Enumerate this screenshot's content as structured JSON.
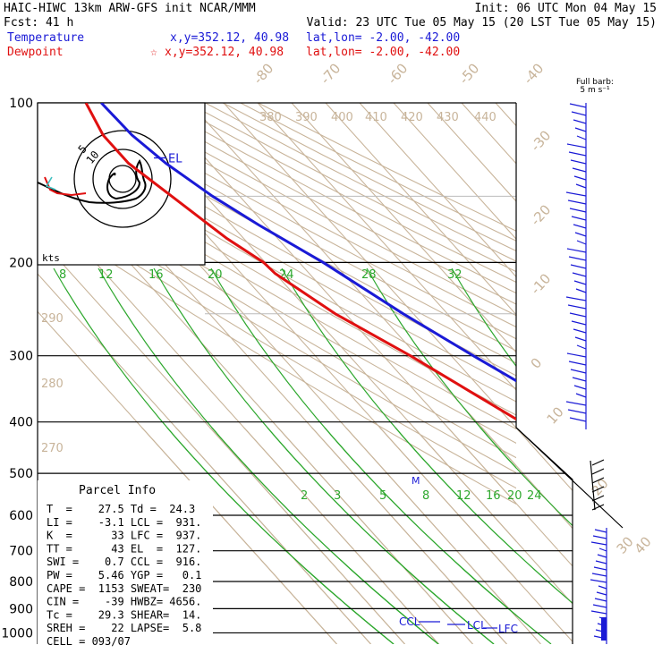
{
  "header": {
    "line1_left": "HAIC-HIWC 13km ARW-GFS init   NCAR/MMM",
    "line1_right": "Init: 06 UTC Mon 04 May 15",
    "line2_left": "Fcst:   41 h",
    "line2_right": "Valid: 23 UTC Tue 05 May 15 (20 LST Tue 05 May 15)",
    "temp_label": "Temperature",
    "temp_coords": "x,y=352.12, 40.98",
    "temp_latlon": "lat,lon= -2.00, -42.00",
    "dew_label": "Dewpoint",
    "dew_marker": "☆",
    "dew_coords": "x,y=352.12, 40.98",
    "dew_latlon": "lat,lon= -2.00, -42.00",
    "barb_key_line1": "Full barb:",
    "barb_key_line2": "5 m s⁻¹",
    "hodo_unit": "kts",
    "hodo_ring_labels": [
      "5",
      "10"
    ]
  },
  "colors": {
    "temperature": "#1a1ad6",
    "dewpoint": "#e01010",
    "isotherm": "#c8b49a",
    "mixing_ratio": "#2ea82e",
    "isobar": "#000000",
    "barb": "#1a1ad6"
  },
  "chart_data": {
    "type": "line",
    "title": "",
    "pressure_levels": [
      100,
      200,
      300,
      400,
      500,
      600,
      700,
      800,
      900,
      1000
    ],
    "isotherm_labels": [
      "-80",
      "-70",
      "-60",
      "-50",
      "-40",
      "-30",
      "-20",
      "-10",
      "0",
      "10",
      "20",
      "30",
      "40"
    ],
    "theta_labels": [
      "380",
      "390",
      "400",
      "410",
      "420",
      "430",
      "440",
      "290",
      "280",
      "270"
    ],
    "mixing_ratio_upper_labels": [
      "8",
      "12",
      "16",
      "20",
      "24",
      "28",
      "32"
    ],
    "mixing_ratio_lower_labels": [
      "2",
      "3",
      "5",
      "8",
      "12",
      "16",
      "20",
      "24"
    ],
    "series": [
      {
        "name": "Temperature",
        "points": [
          [
            1000,
            27.5
          ],
          [
            980,
            24.0
          ],
          [
            950,
            22.0
          ],
          [
            930,
            21.0
          ],
          [
            900,
            20.0
          ],
          [
            850,
            17.2
          ],
          [
            800,
            14.5
          ],
          [
            700,
            8.6
          ],
          [
            600,
            1.8
          ],
          [
            500,
            -6.2
          ],
          [
            450,
            -11.5
          ],
          [
            400,
            -17.5
          ],
          [
            350,
            -25.0
          ],
          [
            300,
            -33.5
          ],
          [
            250,
            -43.0
          ],
          [
            200,
            -53.0
          ],
          [
            170,
            -62.0
          ],
          [
            150,
            -68.0
          ],
          [
            130,
            -73.0
          ],
          [
            115,
            -75.5
          ],
          [
            100,
            -76.0
          ]
        ]
      },
      {
        "name": "Dewpoint",
        "points": [
          [
            1000,
            24.3
          ],
          [
            980,
            22.5
          ],
          [
            950,
            20.0
          ],
          [
            900,
            16.2
          ],
          [
            850,
            13.0
          ],
          [
            800,
            9.5
          ],
          [
            700,
            4.5
          ],
          [
            600,
            -2.0
          ],
          [
            550,
            -5.0
          ],
          [
            500,
            -11.0
          ],
          [
            470,
            -12.0
          ],
          [
            450,
            -22.0
          ],
          [
            400,
            -37.0
          ],
          [
            350,
            -44.0
          ],
          [
            300,
            -52.0
          ],
          [
            250,
            -63.0
          ],
          [
            210,
            -70.0
          ],
          [
            200,
            -70.5
          ],
          [
            180,
            -75.0
          ],
          [
            150,
            -80.0
          ],
          [
            130,
            -84.0
          ],
          [
            115,
            -84.0
          ],
          [
            100,
            -80.5
          ]
        ]
      }
    ],
    "level_markers": [
      {
        "label": "EL",
        "p": 127
      },
      {
        "label": "CCL",
        "p": 916
      },
      {
        "label": "LCL",
        "p": 931
      },
      {
        "label": "LFC",
        "p": 937
      }
    ],
    "parcel_info": {
      "title": "Parcel Info",
      "rows": [
        "T  =    27.5 Td =  24.3",
        "LI =    -3.1 LCL =  931.",
        "K  =      33 LFC =  937.",
        "TT =      43 EL  =  127.",
        "SWI =    0.7 CCL =  916.",
        "PW =    5.46 YGP =   0.1",
        "CAPE =  1153 SWEAT=  230",
        "CIN =    -39 HWBZ= 4656.",
        "Tc =    29.3 SHEAR=  14.",
        "SREH =    22 LAPSE=  5.8",
        "CELL = 093/07"
      ]
    }
  }
}
